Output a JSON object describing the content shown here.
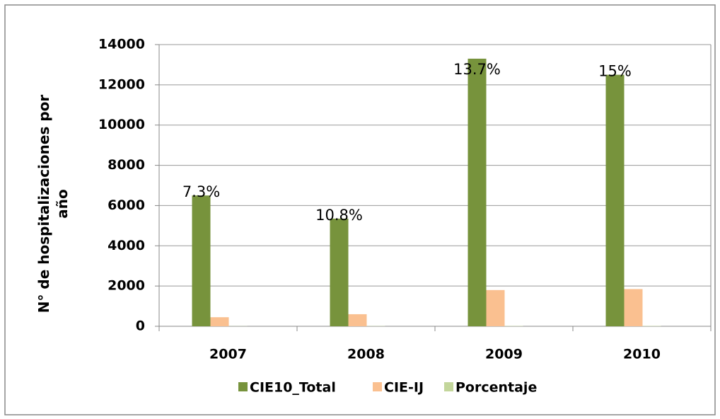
{
  "chart_data": {
    "type": "bar",
    "ylabel": "N°  de hospitalizaciones por año",
    "categories": [
      "2007",
      "2008",
      "2009",
      "2010"
    ],
    "series": [
      {
        "name": "CIE10_Total",
        "color": "#77933c",
        "values": [
          6500,
          5350,
          13300,
          12500
        ]
      },
      {
        "name": "CIE-IJ",
        "color": "#fac090",
        "values": [
          450,
          600,
          1800,
          1850
        ]
      },
      {
        "name": "Porcentaje",
        "color": "#c3d69b",
        "values": [
          7.3,
          10.8,
          13.7,
          15
        ],
        "value_labels": [
          "7.3%",
          "10.8%",
          "13.7%",
          "15%"
        ]
      }
    ],
    "ylim": [
      0,
      14000
    ],
    "yticks": [
      0,
      2000,
      4000,
      6000,
      8000,
      10000,
      12000,
      14000
    ],
    "grid": true,
    "legend": "bottom"
  }
}
